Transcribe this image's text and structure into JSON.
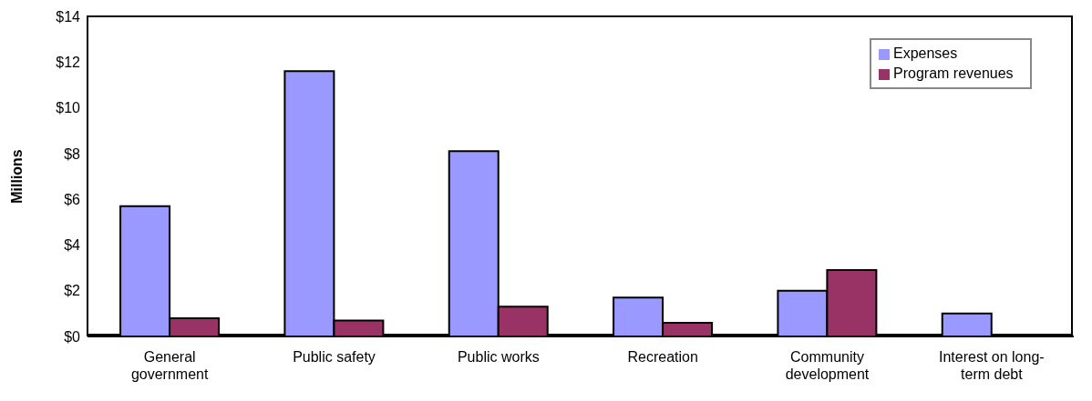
{
  "chart_data": {
    "type": "bar",
    "ylabel": "Millions",
    "categories": [
      "General government",
      "Public safety",
      "Public works",
      "Recreation",
      "Community development",
      "Interest on long-term debt"
    ],
    "series": [
      {
        "name": "Expenses",
        "color": "#9999ff",
        "values": [
          5.7,
          11.6,
          8.1,
          1.7,
          2.0,
          1.0
        ]
      },
      {
        "name": "Program revenues",
        "color": "#993366",
        "values": [
          0.8,
          0.7,
          1.3,
          0.6,
          2.9,
          null
        ]
      }
    ],
    "ylim": [
      0,
      14
    ],
    "yticks": [
      {
        "value": 0,
        "label": "$0"
      },
      {
        "value": 2,
        "label": "$2"
      },
      {
        "value": 4,
        "label": "$4"
      },
      {
        "value": 6,
        "label": "$6"
      },
      {
        "value": 8,
        "label": "$8"
      },
      {
        "value": 10,
        "label": "$10"
      },
      {
        "value": 12,
        "label": "$12"
      },
      {
        "value": 14,
        "label": "$14"
      }
    ],
    "grid": false,
    "legend": "top right"
  }
}
